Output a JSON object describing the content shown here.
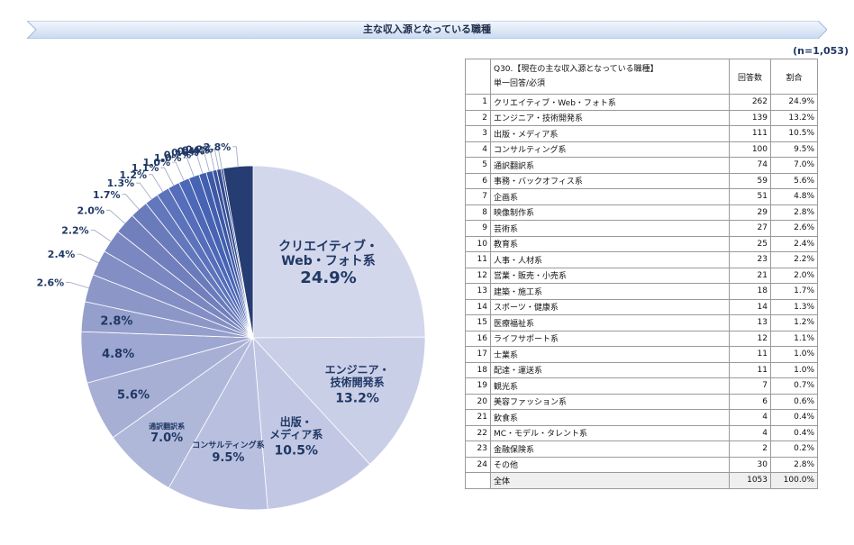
{
  "title": "主な収入源となっている職種",
  "sample_size": "(n=1,053)",
  "table": {
    "question": "Q30.【現在の主な収入源となっている職種】",
    "subtitle": "単一回答/必須",
    "col_count": "回答数",
    "col_pct": "割合",
    "rows": [
      {
        "no": "1",
        "label": "クリエイティブ・Web・フォト系",
        "count": "262",
        "pct": "24.9%"
      },
      {
        "no": "2",
        "label": "エンジニア・技術開発系",
        "count": "139",
        "pct": "13.2%"
      },
      {
        "no": "3",
        "label": "出版・メディア系",
        "count": "111",
        "pct": "10.5%"
      },
      {
        "no": "4",
        "label": "コンサルティング系",
        "count": "100",
        "pct": "9.5%"
      },
      {
        "no": "5",
        "label": "通訳翻訳系",
        "count": "74",
        "pct": "7.0%"
      },
      {
        "no": "6",
        "label": "事務・バックオフィス系",
        "count": "59",
        "pct": "5.6%"
      },
      {
        "no": "7",
        "label": "企画系",
        "count": "51",
        "pct": "4.8%"
      },
      {
        "no": "8",
        "label": "映像制作系",
        "count": "29",
        "pct": "2.8%"
      },
      {
        "no": "9",
        "label": "芸術系",
        "count": "27",
        "pct": "2.6%"
      },
      {
        "no": "10",
        "label": "教育系",
        "count": "25",
        "pct": "2.4%"
      },
      {
        "no": "11",
        "label": "人事・人材系",
        "count": "23",
        "pct": "2.2%"
      },
      {
        "no": "12",
        "label": "営業・販売・小売系",
        "count": "21",
        "pct": "2.0%"
      },
      {
        "no": "13",
        "label": "建築・施工系",
        "count": "18",
        "pct": "1.7%"
      },
      {
        "no": "14",
        "label": "スポーツ・健康系",
        "count": "14",
        "pct": "1.3%"
      },
      {
        "no": "15",
        "label": "医療福祉系",
        "count": "13",
        "pct": "1.2%"
      },
      {
        "no": "16",
        "label": "ライフサポート系",
        "count": "12",
        "pct": "1.1%"
      },
      {
        "no": "17",
        "label": "士業系",
        "count": "11",
        "pct": "1.0%"
      },
      {
        "no": "18",
        "label": "配達・運送系",
        "count": "11",
        "pct": "1.0%"
      },
      {
        "no": "19",
        "label": "観光系",
        "count": "7",
        "pct": "0.7%"
      },
      {
        "no": "20",
        "label": "美容ファッション系",
        "count": "6",
        "pct": "0.6%"
      },
      {
        "no": "21",
        "label": "飲食系",
        "count": "4",
        "pct": "0.4%"
      },
      {
        "no": "22",
        "label": "MC・モデル・タレント系",
        "count": "4",
        "pct": "0.4%"
      },
      {
        "no": "23",
        "label": "金融保険系",
        "count": "2",
        "pct": "0.2%"
      },
      {
        "no": "24",
        "label": "その他",
        "count": "30",
        "pct": "2.8%"
      }
    ],
    "total": {
      "label": "全体",
      "count": "1053",
      "pct": "100.0%"
    }
  },
  "chart_data": {
    "type": "pie",
    "title": "主な収入源となっている職種",
    "slices": [
      {
        "category": "クリエイティブ・Web・フォト系",
        "value": 24.9,
        "label_lines": [
          "クリエイティブ・",
          "Web・フォト系"
        ],
        "value_label": "24.9%",
        "color": "#d3d7ec"
      },
      {
        "category": "エンジニア・技術開発系",
        "value": 13.2,
        "label_lines": [
          "エンジニア・",
          "技術開発系"
        ],
        "value_label": "13.2%",
        "color": "#cacfe8"
      },
      {
        "category": "出版・メディア系",
        "value": 10.5,
        "label_lines": [
          "出版・",
          "メディア系"
        ],
        "value_label": "10.5%",
        "color": "#c2c8e4"
      },
      {
        "category": "コンサルティング系",
        "value": 9.5,
        "label_lines": [
          "コンサルティング系"
        ],
        "value_label": "9.5%",
        "color": "#b9c0df"
      },
      {
        "category": "通訳翻訳系",
        "value": 7.0,
        "label_lines": [
          "通訳翻訳系"
        ],
        "value_label": "7.0%",
        "color": "#b0b8da"
      },
      {
        "category": "事務・バックオフィス系",
        "value": 5.6,
        "value_label": "5.6%",
        "color": "#a7afd5"
      },
      {
        "category": "企画系",
        "value": 4.8,
        "value_label": "4.8%",
        "color": "#9ea7d1"
      },
      {
        "category": "映像制作系",
        "value": 2.8,
        "value_label": "2.8%",
        "color": "#959fcc"
      },
      {
        "category": "芸術系",
        "value": 2.6,
        "value_label": "2.6%",
        "color": "#8c97c8"
      },
      {
        "category": "教育系",
        "value": 2.4,
        "value_label": "2.4%",
        "color": "#838fc4"
      },
      {
        "category": "人事・人材系",
        "value": 2.2,
        "value_label": "2.2%",
        "color": "#7a87c0"
      },
      {
        "category": "営業・販売・小売系",
        "value": 2.0,
        "value_label": "2.0%",
        "color": "#717fbd"
      },
      {
        "category": "建築・施工系",
        "value": 1.7,
        "value_label": "1.7%",
        "color": "#6a7bbc"
      },
      {
        "category": "スポーツ・健康系",
        "value": 1.3,
        "value_label": "1.3%",
        "color": "#6377bc"
      },
      {
        "category": "医療福祉系",
        "value": 1.2,
        "value_label": "1.2%",
        "color": "#5c72bb"
      },
      {
        "category": "ライフサポート系",
        "value": 1.1,
        "value_label": "1.1%",
        "color": "#556dba"
      },
      {
        "category": "士業系",
        "value": 1.0,
        "value_label": "1.0%",
        "color": "#4e68b8"
      },
      {
        "category": "配達・運送系",
        "value": 1.0,
        "value_label": "1.0%",
        "color": "#4763b4"
      },
      {
        "category": "観光系",
        "value": 0.7,
        "value_label": "0.7%",
        "color": "#425eae"
      },
      {
        "category": "美容ファッション系",
        "value": 0.6,
        "value_label": "0.6%",
        "color": "#3d58a6"
      },
      {
        "category": "飲食系",
        "value": 0.4,
        "value_label": "0.4%",
        "color": "#38529c"
      },
      {
        "category": "MC・モデル・タレント系",
        "value": 0.4,
        "value_label": "0.4%",
        "color": "#334b92"
      },
      {
        "category": "金融保険系",
        "value": 0.2,
        "value_label": "0.2%",
        "color": "#2e4588"
      },
      {
        "category": "その他",
        "value": 2.8,
        "value_label": "2.8%",
        "color": "#263d74"
      }
    ],
    "legend": "none"
  }
}
